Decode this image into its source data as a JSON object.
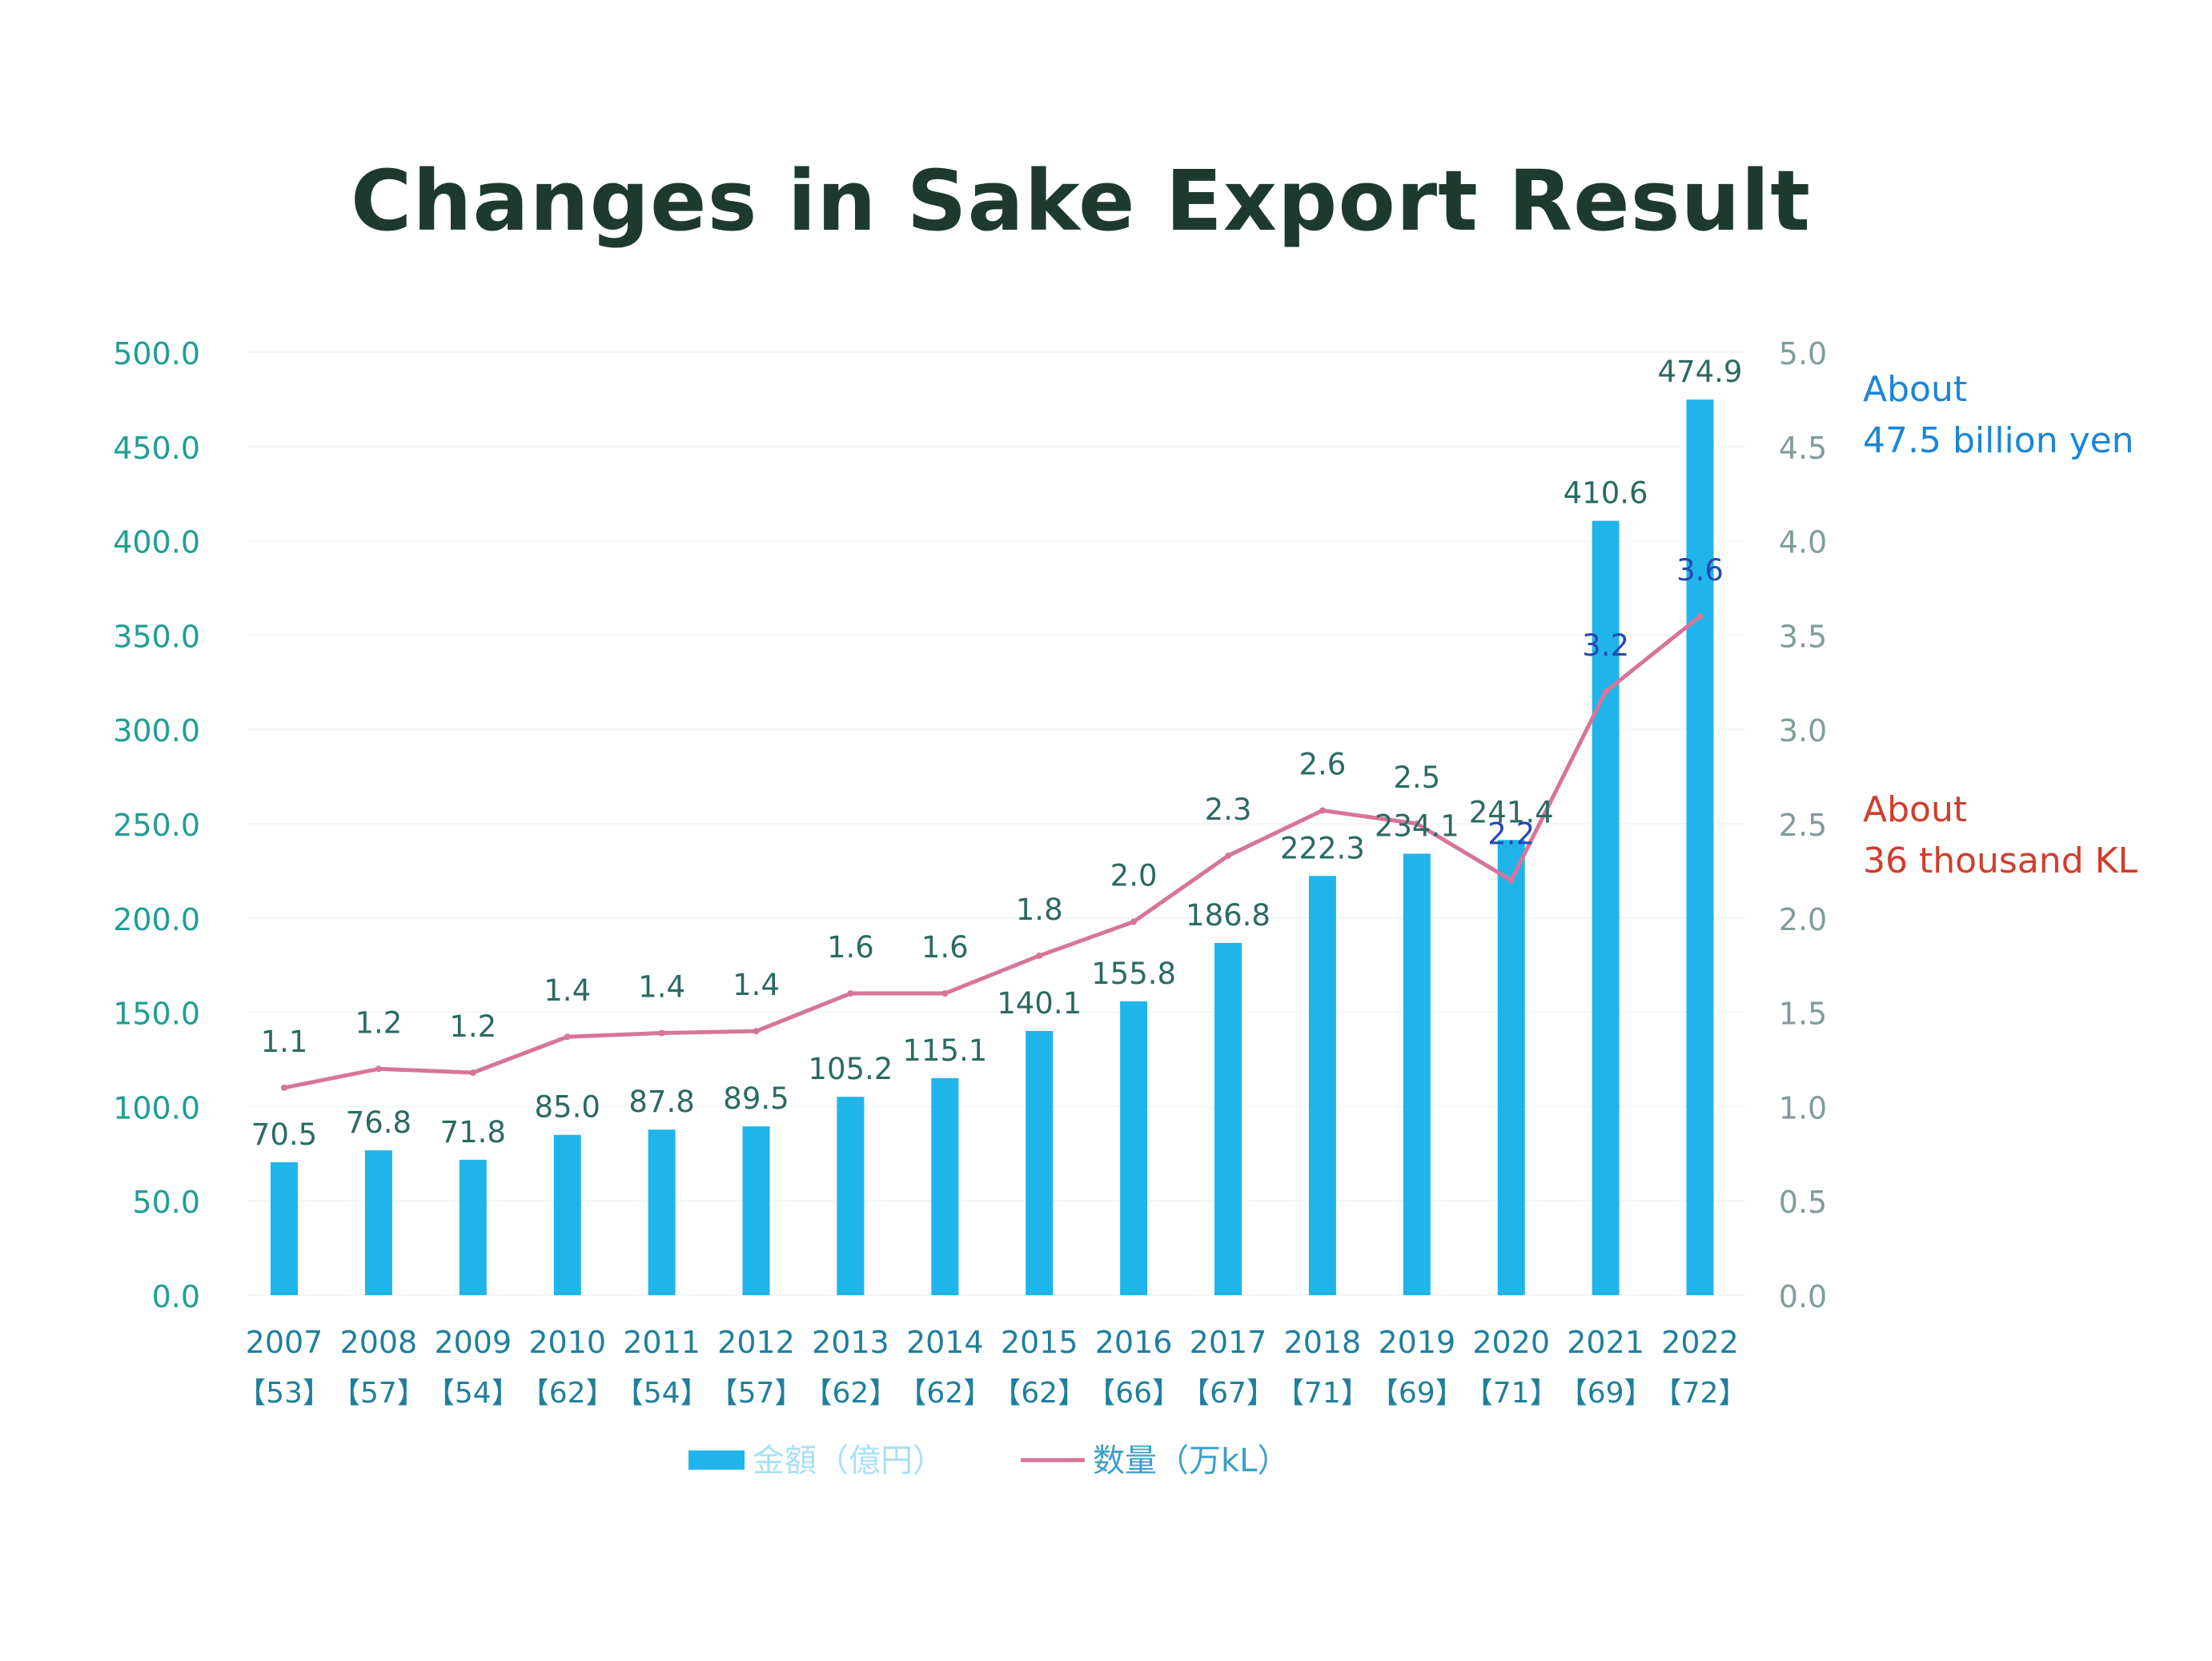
{
  "chart_data": {
    "type": "bar",
    "title": "Changes in Sake Export Result",
    "categories": [
      "2007",
      "2008",
      "2009",
      "2010",
      "2011",
      "2012",
      "2013",
      "2014",
      "2015",
      "2016",
      "2017",
      "2018",
      "2019",
      "2020",
      "2021",
      "2022"
    ],
    "category_sublabels": [
      "【53】",
      "【57】",
      "【54】",
      "【62】",
      "【54】",
      "【57】",
      "【62】",
      "【62】",
      "【62】",
      "【66】",
      "【67】",
      "【71】",
      "【69】",
      "【71】",
      "【69】",
      "【72】"
    ],
    "series": [
      {
        "name": "金額（億円）",
        "type": "bar",
        "axis": "left",
        "color": "#1fb5ea",
        "values": [
          70.5,
          76.8,
          71.8,
          85.0,
          87.8,
          89.5,
          105.2,
          115.1,
          140.1,
          155.8,
          186.8,
          222.3,
          234.1,
          241.4,
          410.6,
          474.9
        ],
        "value_labels": [
          "70.5",
          "76.8",
          "71.8",
          "85.0",
          "87.8",
          "89.5",
          "105.2",
          "115.1",
          "140.1",
          "155.8",
          "186.8",
          "222.3",
          "234.1",
          "241.4",
          "410.6",
          "474.9"
        ]
      },
      {
        "name": "数量（万kL）",
        "type": "line",
        "axis": "right",
        "color": "#d7749a",
        "values": [
          1.1,
          1.2,
          1.18,
          1.37,
          1.39,
          1.4,
          1.6,
          1.6,
          1.8,
          1.98,
          2.33,
          2.57,
          2.5,
          2.2,
          3.2,
          3.6
        ],
        "value_labels": [
          "1.1",
          "1.2",
          "1.2",
          "1.4",
          "1.4",
          "1.4",
          "1.6",
          "1.6",
          "1.8",
          "2.0",
          "2.3",
          "2.6",
          "2.5",
          "2.2",
          "3.2",
          "3.6"
        ]
      }
    ],
    "y_left": {
      "range": [
        0,
        500
      ],
      "ticks": [
        0,
        50,
        100,
        150,
        200,
        250,
        300,
        350,
        400,
        450,
        500
      ],
      "tick_labels": [
        "0.0",
        "50.0",
        "100.0",
        "150.0",
        "200.0",
        "250.0",
        "300.0",
        "350.0",
        "400.0",
        "450.0",
        "500.0"
      ]
    },
    "y_right": {
      "range": [
        0,
        5
      ],
      "ticks": [
        0,
        0.5,
        1,
        1.5,
        2,
        2.5,
        3,
        3.5,
        4,
        4.5,
        5
      ],
      "tick_labels": [
        "0.0",
        "0.5",
        "1.0",
        "1.5",
        "2.0",
        "2.5",
        "3.0",
        "3.5",
        "4.0",
        "4.5",
        "5.0"
      ]
    },
    "grid": true,
    "legend": "bottom-center",
    "annotations": [
      {
        "id": "amount",
        "lines": [
          "About",
          "47.5 billion yen"
        ],
        "color": "#1a86d8"
      },
      {
        "id": "volume",
        "lines": [
          "About",
          "36 thousand KL"
        ],
        "color": "#d23c2c"
      }
    ],
    "colors": {
      "title": "#1e3a2e",
      "left_axis_text": "#1f9e92",
      "right_axis_text": "#7f9c9b",
      "category_text": "#1f7f9c",
      "bar_label_text": "#2a6a62",
      "line_label_text": "#2a6a62",
      "line_label_highlight": "#2448b4",
      "gridline": "#f2f6f6",
      "legend_amount_text": "#a9dff4",
      "legend_volume_text": "#3a9fc6"
    }
  }
}
